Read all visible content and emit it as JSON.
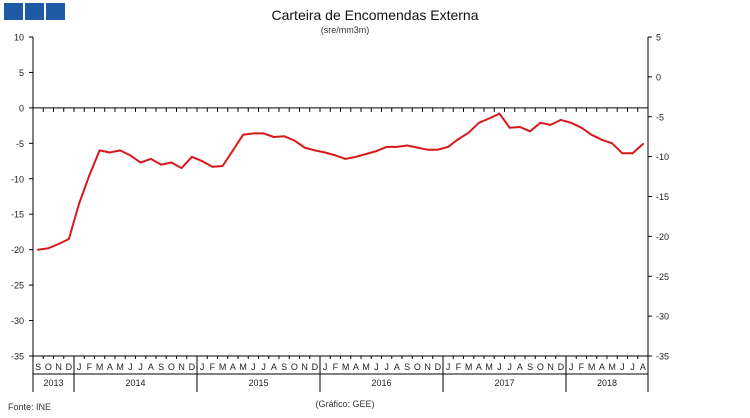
{
  "header": {
    "title": "Carteira de Encomendas Externa",
    "subtitle": "(sre/mm3m)"
  },
  "footer": {
    "source": "Fonte: INE",
    "credit": "(Gráfico: GEE)"
  },
  "colors": {
    "series": "#d7191c",
    "logo": "#1f5aa6",
    "axis": "#000000"
  },
  "chart_data": {
    "type": "line",
    "title": "Carteira de Encomendas Externa",
    "subtitle": "(sre/mm3m)",
    "grid": false,
    "legend": "none",
    "y_left": {
      "range": [
        -35,
        10
      ],
      "ticks": [
        10,
        5,
        0,
        -5,
        -10,
        -15,
        -20,
        -25,
        -30,
        -35
      ]
    },
    "y_right": {
      "range": [
        -35,
        5
      ],
      "ticks": [
        5,
        0,
        -5,
        -10,
        -15,
        -20,
        -25,
        -30,
        -35
      ]
    },
    "month_labels": [
      "S",
      "O",
      "N",
      "D",
      "J",
      "F",
      "M",
      "A",
      "M",
      "J",
      "J",
      "A",
      "S",
      "O",
      "N",
      "D",
      "J",
      "F",
      "M",
      "A",
      "M",
      "J",
      "J",
      "A",
      "S",
      "O",
      "N",
      "D",
      "J",
      "F",
      "M",
      "A",
      "M",
      "J",
      "J",
      "A",
      "S",
      "O",
      "N",
      "D",
      "J",
      "F",
      "M",
      "A",
      "M",
      "J",
      "J",
      "A",
      "S",
      "O",
      "N",
      "D",
      "J",
      "F",
      "M",
      "A",
      "M",
      "J",
      "J",
      "A"
    ],
    "year_groups": [
      {
        "label": "2013",
        "months": 4
      },
      {
        "label": "2014",
        "months": 12
      },
      {
        "label": "2015",
        "months": 12
      },
      {
        "label": "2016",
        "months": 12
      },
      {
        "label": "2017",
        "months": 12
      },
      {
        "label": "2018",
        "months": 8
      }
    ],
    "series": [
      {
        "axis": "left",
        "values": [
          -20.0,
          -19.8,
          -19.2,
          -18.5,
          -13.5,
          -9.5,
          -6.0,
          -6.3,
          -6.0,
          -6.7,
          -7.7,
          -7.2,
          -8.0,
          -7.7,
          -8.5,
          -6.9,
          -7.5,
          -8.3,
          -8.2,
          -6.0,
          -3.8,
          -3.6,
          -3.6,
          -4.1,
          -4.0,
          -4.6,
          -5.6,
          -6.0,
          -6.3,
          -6.7,
          -7.2,
          -6.9,
          -6.5,
          -6.1,
          -5.5,
          -5.5,
          -5.3,
          -5.6,
          -5.9,
          -5.9,
          -5.5,
          -4.4,
          -3.5,
          -2.1,
          -1.5,
          -0.8,
          -2.8,
          -2.7,
          -3.3,
          -2.1,
          -2.4,
          -1.7,
          -2.1,
          -2.8,
          -3.8,
          -4.5,
          -5.0,
          -6.4,
          -6.4,
          -5.1
        ]
      }
    ]
  }
}
